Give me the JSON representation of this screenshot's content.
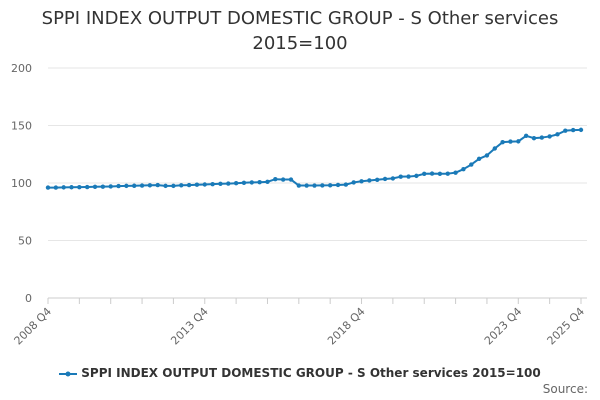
{
  "chart_data": {
    "type": "line",
    "title": "SPPI INDEX OUTPUT DOMESTIC GROUP - S Other services",
    "subtitle": "2015=100",
    "xlabel": "",
    "ylabel": "",
    "ylim": [
      0,
      200
    ],
    "yticks": [
      0,
      50,
      100,
      150,
      200
    ],
    "xtick_labels": [
      "2008 Q4",
      "2013 Q4",
      "2018 Q4",
      "2023 Q4",
      "2025 Q4"
    ],
    "grid": true,
    "legend_position": "bottom",
    "x": [
      "2008 Q4",
      "2009 Q1",
      "2009 Q2",
      "2009 Q3",
      "2009 Q4",
      "2010 Q1",
      "2010 Q2",
      "2010 Q3",
      "2010 Q4",
      "2011 Q1",
      "2011 Q2",
      "2011 Q3",
      "2011 Q4",
      "2012 Q1",
      "2012 Q2",
      "2012 Q3",
      "2012 Q4",
      "2013 Q1",
      "2013 Q2",
      "2013 Q3",
      "2013 Q4",
      "2014 Q1",
      "2014 Q2",
      "2014 Q3",
      "2014 Q4",
      "2015 Q1",
      "2015 Q2",
      "2015 Q3",
      "2015 Q4",
      "2016 Q1",
      "2016 Q2",
      "2016 Q3",
      "2016 Q4",
      "2017 Q1",
      "2017 Q2",
      "2017 Q3",
      "2017 Q4",
      "2018 Q1",
      "2018 Q2",
      "2018 Q3",
      "2018 Q4",
      "2019 Q1",
      "2019 Q2",
      "2019 Q3",
      "2019 Q4",
      "2020 Q1",
      "2020 Q2",
      "2020 Q3",
      "2020 Q4",
      "2021 Q1",
      "2021 Q2",
      "2021 Q3",
      "2021 Q4",
      "2022 Q1",
      "2022 Q2",
      "2022 Q3",
      "2022 Q4",
      "2023 Q1",
      "2023 Q2",
      "2023 Q3",
      "2023 Q4",
      "2024 Q1",
      "2024 Q2",
      "2024 Q3",
      "2024 Q4",
      "2025 Q1",
      "2025 Q2",
      "2025 Q3",
      "2025 Q4"
    ],
    "series": [
      {
        "name": "SPPI INDEX OUTPUT DOMESTIC GROUP - S Other services 2015=100",
        "color": "#1a7ab8",
        "values": [
          96.0,
          96.0,
          96.2,
          96.3,
          96.4,
          96.5,
          96.7,
          96.8,
          97.0,
          97.3,
          97.5,
          97.6,
          97.8,
          98.0,
          98.2,
          97.5,
          97.5,
          98.0,
          98.2,
          98.5,
          98.7,
          99.0,
          99.3,
          99.5,
          99.8,
          100.2,
          100.5,
          100.7,
          101.0,
          103.3,
          103.0,
          103.0,
          97.8,
          97.8,
          97.8,
          97.9,
          98.0,
          98.3,
          98.6,
          100.5,
          101.5,
          102.2,
          102.8,
          103.5,
          104.0,
          105.5,
          105.6,
          106.2,
          108.0,
          108.2,
          108.0,
          108.1,
          109.0,
          112.0,
          116.0,
          121.0,
          124.0,
          130.0,
          135.5,
          136.0,
          136.2,
          141.0,
          139.0,
          139.5,
          140.5,
          142.3,
          145.5,
          146.0,
          146.2
        ]
      }
    ]
  },
  "source_label": "Source:"
}
